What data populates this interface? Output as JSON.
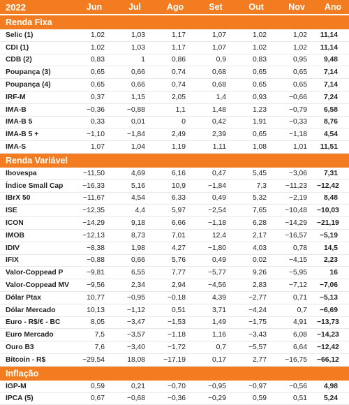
{
  "header": [
    "2022",
    "Jun",
    "Jul",
    "Ago",
    "Set",
    "Out",
    "Nov",
    "Ano"
  ],
  "sections": [
    {
      "title": "Renda Fixa",
      "rows": [
        {
          "label": "Selic (1)",
          "values": [
            "1,02",
            "1,03",
            "1,17",
            "1,07",
            "1,02",
            "1,02",
            "11,14"
          ]
        },
        {
          "label": "CDI (1)",
          "values": [
            "1,02",
            "1,03",
            "1,17",
            "1,07",
            "1,02",
            "1,02",
            "11,14"
          ]
        },
        {
          "label": "CDB (2)",
          "values": [
            "0,83",
            "1",
            "0,86",
            "0,9",
            "0,83",
            "0,95",
            "9,48"
          ]
        },
        {
          "label": "Poupança (3)",
          "values": [
            "0,65",
            "0,66",
            "0,74",
            "0,68",
            "0,65",
            "0,65",
            "7,14"
          ]
        },
        {
          "label": "Poupança (4)",
          "values": [
            "0,65",
            "0,66",
            "0,74",
            "0,68",
            "0,65",
            "0,65",
            "7,14"
          ]
        },
        {
          "label": "IRF-M",
          "values": [
            "0,37",
            "1,15",
            "2,05",
            "1,4",
            "0,93",
            "−0,66",
            "7,24"
          ]
        },
        {
          "label": "IMA-B",
          "values": [
            "−0,36",
            "−0,88",
            "1,1",
            "1,48",
            "1,23",
            "−0,79",
            "6,58"
          ]
        },
        {
          "label": "IMA-B 5",
          "values": [
            "0,33",
            "0,01",
            "0",
            "0,42",
            "1,91",
            "−0,33",
            "8,76"
          ]
        },
        {
          "label": "IMA-B 5 +",
          "values": [
            "−1,10",
            "−1,84",
            "2,49",
            "2,39",
            "0,65",
            "−1,18",
            "4,54"
          ]
        },
        {
          "label": "IMA-S",
          "values": [
            "1,07",
            "1,04",
            "1,19",
            "1,11",
            "1,08",
            "1,01",
            "11,51"
          ]
        }
      ]
    },
    {
      "title": "Renda Variável",
      "rows": [
        {
          "label": "Ibovespa",
          "values": [
            "−11,50",
            "4,69",
            "6,16",
            "0,47",
            "5,45",
            "−3,06",
            "7,31"
          ]
        },
        {
          "label": "Índice Small Cap",
          "values": [
            "−16,33",
            "5,16",
            "10,9",
            "−1,84",
            "7,3",
            "−11,23",
            "−12,42"
          ]
        },
        {
          "label": "IBrX 50",
          "values": [
            "−11,67",
            "4,54",
            "6,33",
            "0,49",
            "5,32",
            "−2,19",
            "8,48"
          ]
        },
        {
          "label": "ISE",
          "values": [
            "−12,35",
            "4,4",
            "5,97",
            "−2,54",
            "7,65",
            "−10,48",
            "−10,03"
          ]
        },
        {
          "label": "ICON",
          "values": [
            "−14,29",
            "9,18",
            "6,66",
            "−1,18",
            "6,28",
            "−14,29",
            "−21,19"
          ]
        },
        {
          "label": "IMOB",
          "values": [
            "−12,13",
            "8,73",
            "7,01",
            "12,4",
            "2,17",
            "−16,57",
            "−5,19"
          ]
        },
        {
          "label": "IDIV",
          "values": [
            "−8,38",
            "1,98",
            "4,27",
            "−1,80",
            "4,03",
            "0,78",
            "14,5"
          ]
        },
        {
          "label": "IFIX",
          "values": [
            "−0,88",
            "0,66",
            "5,76",
            "0,49",
            "0,02",
            "−4,15",
            "2,23"
          ]
        },
        {
          "label": "Valor-Coppead P",
          "values": [
            "−9,81",
            "6,55",
            "7,77",
            "−5,77",
            "9,26",
            "−5,95",
            "16"
          ]
        },
        {
          "label": "Valor-Coppead MV",
          "values": [
            "−9,56",
            "2,34",
            "2,94",
            "−4,56",
            "2,83",
            "−7,12",
            "−7,06"
          ]
        },
        {
          "label": "Dólar Ptax",
          "values": [
            "10,77",
            "−0,95",
            "−0,18",
            "4,39",
            "−2,77",
            "0,71",
            "−5,13"
          ]
        },
        {
          "label": "Dólar Mercado",
          "values": [
            "10,13",
            "−1,12",
            "0,51",
            "3,71",
            "−4,24",
            "0,7",
            "−6,69"
          ]
        },
        {
          "label": "Euro - R$/€ - BC",
          "values": [
            "8,05",
            "−3,47",
            "−1,53",
            "1,49",
            "−1,75",
            "4,91",
            "−13,73"
          ]
        },
        {
          "label": "Euro Mercado",
          "values": [
            "7,5",
            "−3,57",
            "−1,18",
            "1,16",
            "−3,43",
            "6,08",
            "−14,23"
          ]
        },
        {
          "label": "Ouro B3",
          "values": [
            "7,6",
            "−3,40",
            "−1,72",
            "0,7",
            "−5,57",
            "6,64",
            "−12,42"
          ]
        },
        {
          "label": "Bitcoin - R$",
          "values": [
            "−29,54",
            "18,08",
            "−17,19",
            "0,17",
            "2,77",
            "−16,75",
            "−66,12"
          ]
        }
      ]
    },
    {
      "title": "Inflação",
      "rows": [
        {
          "label": "IGP-M",
          "values": [
            "0,59",
            "0,21",
            "−0,70",
            "−0,95",
            "−0,97",
            "−0,56",
            "4,98"
          ]
        },
        {
          "label": "IPCA (5)",
          "values": [
            "0,67",
            "−0,68",
            "−0,36",
            "−0,29",
            "0,59",
            "0,51",
            "5,24"
          ]
        }
      ]
    }
  ],
  "colors": {
    "accent": "#f47c20",
    "text": "#222222"
  }
}
